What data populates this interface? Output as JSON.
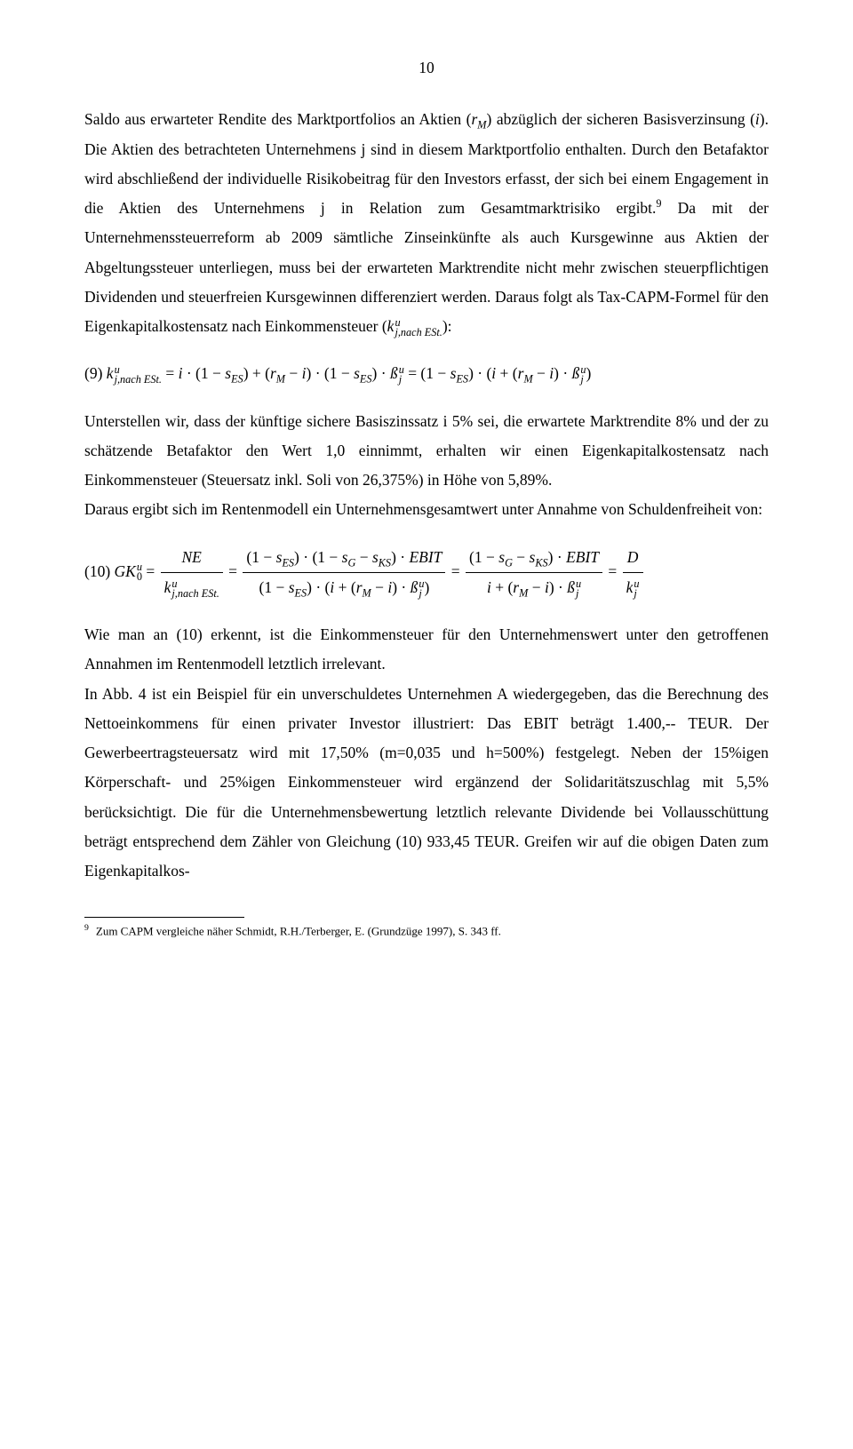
{
  "page_number": "10",
  "para1_a": "Saldo aus erwarteter Rendite des Marktportfolios an Aktien (",
  "para1_b": ") abzüglich der sicheren Basisverzinsung (",
  "para1_c": "). Die Aktien des betrachteten Unternehmens j sind in diesem Marktportfolio enthalten. Durch den Betafaktor wird abschließend der individuelle Risikobeitrag für den Investors erfasst, der sich bei einem Engagement in die Aktien des Unternehmens j in Relation zum Gesamtmarktrisiko ergibt.",
  "fn9_inline": "9",
  "para2_a": "Da mit der Unternehmenssteuerreform ab 2009 sämtliche Zinseinkünfte als auch Kursgewinne aus Aktien der Abgeltungssteuer unterliegen, muss bei der erwarteten Marktrendite nicht mehr zwischen steuerpflichtigen Dividenden und steuerfreien Kursgewinnen differenziert werden. Daraus folgt als Tax-CAPM-Formel für den Eigenkapitalkostensatz nach Einkommensteuer (",
  "para2_b": "):",
  "para3": "Unterstellen wir, dass der künftige sichere Basiszinssatz i 5% sei, die erwartete Marktrendite 8% und der zu schätzende Betafaktor den Wert 1,0 einnimmt, erhalten wir einen Eigenkapitalkostensatz nach Einkommensteuer (Steuersatz inkl. Soli von 26,375%) in Höhe von 5,89%.",
  "para4": "Daraus ergibt sich im Rentenmodell ein Unternehmensgesamtwert unter Annahme von Schuldenfreiheit von:",
  "para5": "Wie man an (10) erkennt, ist die Einkommensteuer für den Unternehmenswert unter den getroffenen Annahmen im Rentenmodell letztlich irrelevant.",
  "para6": "In Abb. 4 ist ein Beispiel für ein unverschuldetes Unternehmen A wiedergegeben, das die Berechnung des Nettoeinkommens für einen privater Investor illustriert: Das EBIT beträgt 1.400,-- TEUR. Der Gewerbeertragsteuersatz wird mit 17,50% (m=0,035 und h=500%) festgelegt. Neben der 15%igen Körperschaft- und 25%igen Einkommensteuer wird ergänzend der Solidaritätszuschlag mit 5,5% berücksichtigt. Die für die Unternehmensbewertung letztlich relevante Dividende bei Vollausschüttung beträgt entsprechend dem Zähler von Gleichung (10) 933,45 TEUR. Greifen wir auf die obigen Daten zum Eigenkapitalkos-",
  "eq9_num": "(9) ",
  "eq10_num": "(10) ",
  "footnote_num": "9",
  "footnote_text": "Zum CAPM vergleiche näher Schmidt, R.H./Terberger, E. (Grundzüge 1997), S. 343 ff.",
  "sym": {
    "rM_r": "r",
    "rM_M": "M",
    "i": "i",
    "k": "k",
    "u": "u",
    "jnachESt": "j,nach ESt.",
    "s": "s",
    "ES": "ES",
    "beta": "ß",
    "j": "j",
    "GK": "GK",
    "zero": "0",
    "NE": "NE",
    "G": "G",
    "KS": "KS",
    "EBIT": "EBIT",
    "D": "D"
  }
}
